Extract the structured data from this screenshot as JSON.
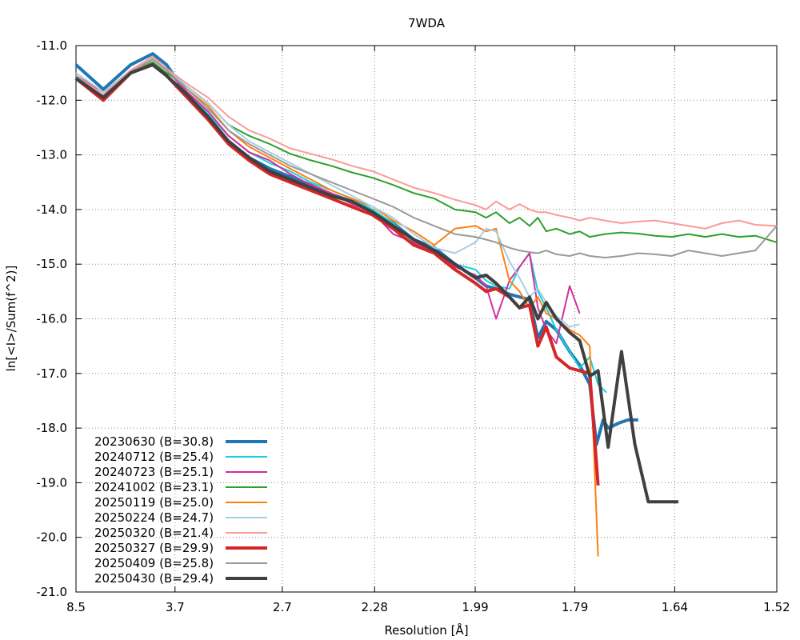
{
  "chart_data": {
    "type": "line",
    "title": "7WDA",
    "xlabel": "Resolution [Å]",
    "ylabel": "ln[<I>/Sum(f^2)]",
    "x_unit": "1/d^2 (reciprocal-square resolution axis)",
    "x_ticks": [
      "8.5",
      "3.7",
      "2.7",
      "2.28",
      "1.99",
      "1.79",
      "1.64",
      "1.52"
    ],
    "xlim": [
      0.01384,
      0.43283
    ],
    "ylim": [
      -21.0,
      -11.0
    ],
    "y_ticks": [
      -11.0,
      -12.0,
      -13.0,
      -14.0,
      -15.0,
      -16.0,
      -17.0,
      -18.0,
      -19.0,
      -20.0,
      -21.0
    ],
    "grid": true,
    "legend_position": "bottom-left",
    "series": [
      {
        "name": "20230630 (B=30.8)",
        "color": "#1f77b4",
        "width": 4,
        "x": [
          0.0138,
          0.0302,
          0.0466,
          0.0597,
          0.068,
          0.0803,
          0.0927,
          0.105,
          0.1173,
          0.1296,
          0.1419,
          0.1542,
          0.1665,
          0.1788,
          0.1912,
          0.2035,
          0.2158,
          0.2281,
          0.2404,
          0.2527,
          0.259,
          0.265,
          0.273,
          0.279,
          0.285,
          0.29,
          0.295,
          0.301,
          0.309,
          0.315,
          0.321,
          0.325,
          0.329,
          0.332,
          0.339,
          0.344,
          0.35
        ],
        "y": [
          -11.35,
          -11.8,
          -11.35,
          -11.15,
          -11.35,
          -11.9,
          -12.3,
          -12.75,
          -13.05,
          -13.25,
          -13.4,
          -13.55,
          -13.72,
          -13.85,
          -14.05,
          -14.25,
          -14.55,
          -14.7,
          -15.0,
          -15.25,
          -15.4,
          -15.45,
          -15.55,
          -15.6,
          -15.65,
          -16.35,
          -16.05,
          -16.2,
          -16.6,
          -16.85,
          -17.2,
          -18.3,
          -17.85,
          -18.0,
          -17.9,
          -17.85,
          -17.85
        ]
      },
      {
        "name": "20240712 (B=25.4)",
        "color": "#17d0e0",
        "width": 2,
        "x": [
          0.0138,
          0.0302,
          0.0466,
          0.0597,
          0.068,
          0.0803,
          0.0927,
          0.105,
          0.1173,
          0.1296,
          0.1419,
          0.1542,
          0.1665,
          0.1788,
          0.1912,
          0.2035,
          0.2158,
          0.2281,
          0.2404,
          0.2527,
          0.259,
          0.265,
          0.273,
          0.279,
          0.285,
          0.29,
          0.295,
          0.301,
          0.309,
          0.315,
          0.321,
          0.326,
          0.331
        ],
        "y": [
          -11.55,
          -11.9,
          -11.45,
          -11.25,
          -11.45,
          -11.85,
          -12.25,
          -12.65,
          -12.95,
          -13.15,
          -13.3,
          -13.5,
          -13.65,
          -13.8,
          -14.0,
          -14.25,
          -14.6,
          -14.75,
          -15.0,
          -15.1,
          -15.3,
          -15.4,
          -15.45,
          -15.05,
          -14.8,
          -15.5,
          -15.8,
          -16.2,
          -16.6,
          -16.9,
          -16.7,
          -17.2,
          -17.35
        ]
      },
      {
        "name": "20240723 (B=25.1)",
        "color": "#d62f9c",
        "width": 2,
        "x": [
          0.0138,
          0.0302,
          0.0466,
          0.0597,
          0.068,
          0.0803,
          0.0927,
          0.105,
          0.1173,
          0.1296,
          0.1419,
          0.1542,
          0.1665,
          0.1788,
          0.1912,
          0.2035,
          0.2158,
          0.2281,
          0.2404,
          0.2527,
          0.259,
          0.265,
          0.273,
          0.279,
          0.285,
          0.29,
          0.295,
          0.301,
          0.309,
          0.315
        ],
        "y": [
          -11.55,
          -11.85,
          -11.5,
          -11.25,
          -11.45,
          -11.85,
          -12.2,
          -12.65,
          -12.95,
          -13.1,
          -13.35,
          -13.55,
          -13.7,
          -13.9,
          -14.05,
          -14.45,
          -14.6,
          -14.8,
          -15.05,
          -15.2,
          -15.4,
          -16.0,
          -15.3,
          -15.05,
          -14.8,
          -15.8,
          -16.2,
          -16.45,
          -15.4,
          -15.9
        ]
      },
      {
        "name": "20241002 (B=23.1)",
        "color": "#2ca02c",
        "width": 2,
        "x": [
          0.0138,
          0.0302,
          0.0466,
          0.0597,
          0.068,
          0.0803,
          0.0927,
          0.105,
          0.1173,
          0.1296,
          0.1419,
          0.1542,
          0.1665,
          0.1788,
          0.1912,
          0.2035,
          0.2158,
          0.2281,
          0.2404,
          0.2527,
          0.259,
          0.265,
          0.273,
          0.279,
          0.285,
          0.29,
          0.295,
          0.301,
          0.309,
          0.315,
          0.321,
          0.33,
          0.34,
          0.35,
          0.36,
          0.37,
          0.38,
          0.39,
          0.4,
          0.41,
          0.42,
          0.4328
        ],
        "y": [
          -11.6,
          -11.95,
          -11.5,
          -11.3,
          -11.5,
          -11.75,
          -12.05,
          -12.45,
          -12.65,
          -12.8,
          -12.98,
          -13.1,
          -13.2,
          -13.32,
          -13.42,
          -13.55,
          -13.7,
          -13.8,
          -14.0,
          -14.05,
          -14.15,
          -14.05,
          -14.25,
          -14.15,
          -14.3,
          -14.15,
          -14.4,
          -14.35,
          -14.45,
          -14.4,
          -14.5,
          -14.45,
          -14.42,
          -14.44,
          -14.48,
          -14.5,
          -14.45,
          -14.5,
          -14.45,
          -14.5,
          -14.48,
          -14.6
        ]
      },
      {
        "name": "20250119 (B=25.0)",
        "color": "#ff7f0e",
        "width": 2,
        "x": [
          0.0138,
          0.0302,
          0.0466,
          0.0597,
          0.068,
          0.0803,
          0.0927,
          0.105,
          0.1173,
          0.1296,
          0.1419,
          0.1542,
          0.1665,
          0.1788,
          0.1912,
          0.2035,
          0.2158,
          0.2281,
          0.2404,
          0.2527,
          0.259,
          0.265,
          0.273,
          0.279,
          0.285,
          0.29,
          0.295,
          0.301,
          0.309,
          0.315,
          0.321,
          0.326
        ],
        "y": [
          -11.55,
          -11.9,
          -11.5,
          -11.25,
          -11.45,
          -11.8,
          -12.1,
          -12.55,
          -12.85,
          -13.05,
          -13.25,
          -13.45,
          -13.65,
          -13.8,
          -13.95,
          -14.2,
          -14.4,
          -14.65,
          -14.35,
          -14.3,
          -14.4,
          -14.35,
          -15.3,
          -15.5,
          -15.8,
          -15.6,
          -15.9,
          -16.0,
          -16.2,
          -16.3,
          -16.5,
          -20.35
        ]
      },
      {
        "name": "20250224 (B=24.7)",
        "color": "#a6cee3",
        "width": 2,
        "x": [
          0.0138,
          0.0302,
          0.0466,
          0.0597,
          0.068,
          0.0803,
          0.0927,
          0.105,
          0.1173,
          0.1296,
          0.1419,
          0.1542,
          0.1665,
          0.1788,
          0.1912,
          0.2035,
          0.2158,
          0.2281,
          0.2404,
          0.2527,
          0.259,
          0.265,
          0.273,
          0.279,
          0.285,
          0.29,
          0.295,
          0.301,
          0.309,
          0.315
        ],
        "y": [
          -11.5,
          -11.85,
          -11.45,
          -11.22,
          -11.42,
          -11.75,
          -12.05,
          -12.45,
          -12.75,
          -12.95,
          -13.15,
          -13.35,
          -13.55,
          -13.75,
          -13.95,
          -14.15,
          -14.45,
          -14.7,
          -14.8,
          -14.6,
          -14.35,
          -14.4,
          -14.95,
          -15.25,
          -15.6,
          -15.45,
          -15.7,
          -15.95,
          -16.15,
          -16.1
        ]
      },
      {
        "name": "20250320 (B=21.4)",
        "color": "#fb9a99",
        "width": 2,
        "x": [
          0.0138,
          0.0302,
          0.0466,
          0.0597,
          0.068,
          0.0803,
          0.0927,
          0.105,
          0.1173,
          0.1296,
          0.1419,
          0.1542,
          0.1665,
          0.1788,
          0.1912,
          0.2035,
          0.2158,
          0.2281,
          0.2404,
          0.2527,
          0.259,
          0.265,
          0.273,
          0.279,
          0.285,
          0.29,
          0.295,
          0.301,
          0.309,
          0.315,
          0.321,
          0.33,
          0.34,
          0.35,
          0.36,
          0.37,
          0.38,
          0.39,
          0.4,
          0.41,
          0.42,
          0.4328
        ],
        "y": [
          -11.55,
          -11.9,
          -11.45,
          -11.2,
          -11.42,
          -11.7,
          -11.95,
          -12.3,
          -12.55,
          -12.7,
          -12.88,
          -12.98,
          -13.08,
          -13.2,
          -13.3,
          -13.45,
          -13.6,
          -13.7,
          -13.82,
          -13.92,
          -14.0,
          -13.85,
          -14.0,
          -13.9,
          -14.0,
          -14.05,
          -14.05,
          -14.1,
          -14.15,
          -14.2,
          -14.15,
          -14.2,
          -14.25,
          -14.22,
          -14.2,
          -14.25,
          -14.3,
          -14.35,
          -14.25,
          -14.2,
          -14.28,
          -14.3
        ]
      },
      {
        "name": "20250327 (B=29.9)",
        "color": "#d62728",
        "width": 4,
        "x": [
          0.0138,
          0.0302,
          0.0466,
          0.0597,
          0.068,
          0.0803,
          0.0927,
          0.105,
          0.1173,
          0.1296,
          0.1419,
          0.1542,
          0.1665,
          0.1788,
          0.1912,
          0.2035,
          0.2158,
          0.2281,
          0.2404,
          0.2527,
          0.259,
          0.265,
          0.273,
          0.279,
          0.285,
          0.29,
          0.295,
          0.301,
          0.309,
          0.315,
          0.321,
          0.326
        ],
        "y": [
          -11.6,
          -12.0,
          -11.5,
          -11.35,
          -11.55,
          -11.95,
          -12.35,
          -12.8,
          -13.1,
          -13.35,
          -13.5,
          -13.65,
          -13.8,
          -13.95,
          -14.1,
          -14.35,
          -14.65,
          -14.8,
          -15.1,
          -15.35,
          -15.5,
          -15.45,
          -15.6,
          -15.8,
          -15.75,
          -16.5,
          -16.15,
          -16.7,
          -16.9,
          -16.95,
          -17.0,
          -19.05
        ]
      },
      {
        "name": "20250409 (B=25.8)",
        "color": "#999999",
        "width": 2,
        "x": [
          0.0138,
          0.0302,
          0.0466,
          0.0597,
          0.068,
          0.0803,
          0.0927,
          0.105,
          0.1173,
          0.1296,
          0.1419,
          0.1542,
          0.1665,
          0.1788,
          0.1912,
          0.2035,
          0.2158,
          0.2281,
          0.2404,
          0.2527,
          0.259,
          0.265,
          0.273,
          0.279,
          0.285,
          0.29,
          0.295,
          0.301,
          0.309,
          0.315,
          0.321,
          0.33,
          0.34,
          0.35,
          0.36,
          0.37,
          0.38,
          0.39,
          0.4,
          0.41,
          0.42,
          0.4328
        ],
        "y": [
          -11.55,
          -11.95,
          -11.48,
          -11.25,
          -11.45,
          -11.8,
          -12.15,
          -12.55,
          -12.8,
          -13.0,
          -13.2,
          -13.35,
          -13.5,
          -13.65,
          -13.8,
          -13.95,
          -14.15,
          -14.3,
          -14.45,
          -14.5,
          -14.55,
          -14.6,
          -14.7,
          -14.75,
          -14.78,
          -14.8,
          -14.75,
          -14.82,
          -14.85,
          -14.8,
          -14.85,
          -14.88,
          -14.85,
          -14.8,
          -14.82,
          -14.85,
          -14.75,
          -14.8,
          -14.85,
          -14.8,
          -14.75,
          -14.3
        ]
      },
      {
        "name": "20250430 (B=29.4)",
        "color": "#404040",
        "width": 4,
        "x": [
          0.0138,
          0.0302,
          0.0466,
          0.0597,
          0.068,
          0.0803,
          0.0927,
          0.105,
          0.1173,
          0.1296,
          0.1419,
          0.1542,
          0.1665,
          0.1788,
          0.1912,
          0.2035,
          0.2158,
          0.2281,
          0.2404,
          0.2527,
          0.259,
          0.265,
          0.273,
          0.279,
          0.285,
          0.29,
          0.295,
          0.301,
          0.309,
          0.315,
          0.321,
          0.326,
          0.332,
          0.34,
          0.348,
          0.356,
          0.36,
          0.366,
          0.374
        ],
        "y": [
          -11.6,
          -11.95,
          -11.5,
          -11.35,
          -11.55,
          -11.9,
          -12.3,
          -12.75,
          -13.05,
          -13.3,
          -13.45,
          -13.6,
          -13.75,
          -13.85,
          -14.05,
          -14.3,
          -14.55,
          -14.75,
          -15.0,
          -15.25,
          -15.2,
          -15.35,
          -15.6,
          -15.8,
          -15.6,
          -16.0,
          -15.7,
          -16.0,
          -16.25,
          -16.4,
          -17.05,
          -16.95,
          -18.35,
          -16.6,
          -18.3,
          -19.35,
          -19.35,
          -19.35,
          -19.35
        ]
      }
    ]
  }
}
